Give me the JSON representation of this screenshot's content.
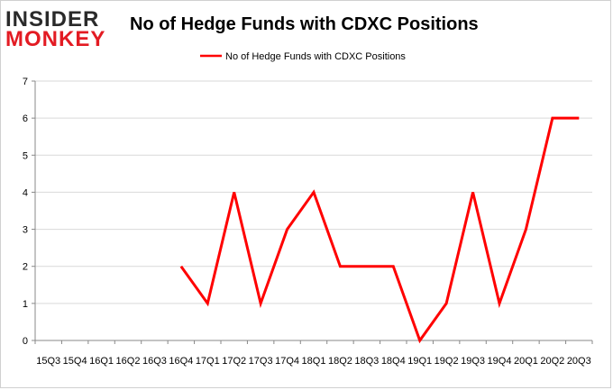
{
  "brand": {
    "line1": "INSIDER",
    "line2": "MONKEY"
  },
  "chart_data": {
    "type": "line",
    "title": "No of Hedge Funds with CDXC Positions",
    "xlabel": "",
    "ylabel": "",
    "categories": [
      "15Q3",
      "15Q4",
      "16Q1",
      "16Q2",
      "16Q3",
      "16Q4",
      "17Q1",
      "17Q2",
      "17Q3",
      "17Q4",
      "18Q1",
      "18Q2",
      "18Q3",
      "18Q4",
      "19Q1",
      "19Q2",
      "19Q3",
      "19Q4",
      "20Q1",
      "20Q2",
      "20Q3"
    ],
    "series": [
      {
        "name": "No of Hedge Funds with CDXC Positions",
        "color": "#ff0000",
        "values": [
          null,
          null,
          null,
          null,
          null,
          2,
          1,
          4,
          1,
          3,
          4,
          2,
          2,
          2,
          0,
          1,
          4,
          1,
          3,
          6,
          6
        ]
      }
    ],
    "ylim": [
      0,
      7
    ],
    "yticks": [
      0,
      1,
      2,
      3,
      4,
      5,
      6,
      7
    ],
    "grid": true,
    "legend": "top-center"
  }
}
